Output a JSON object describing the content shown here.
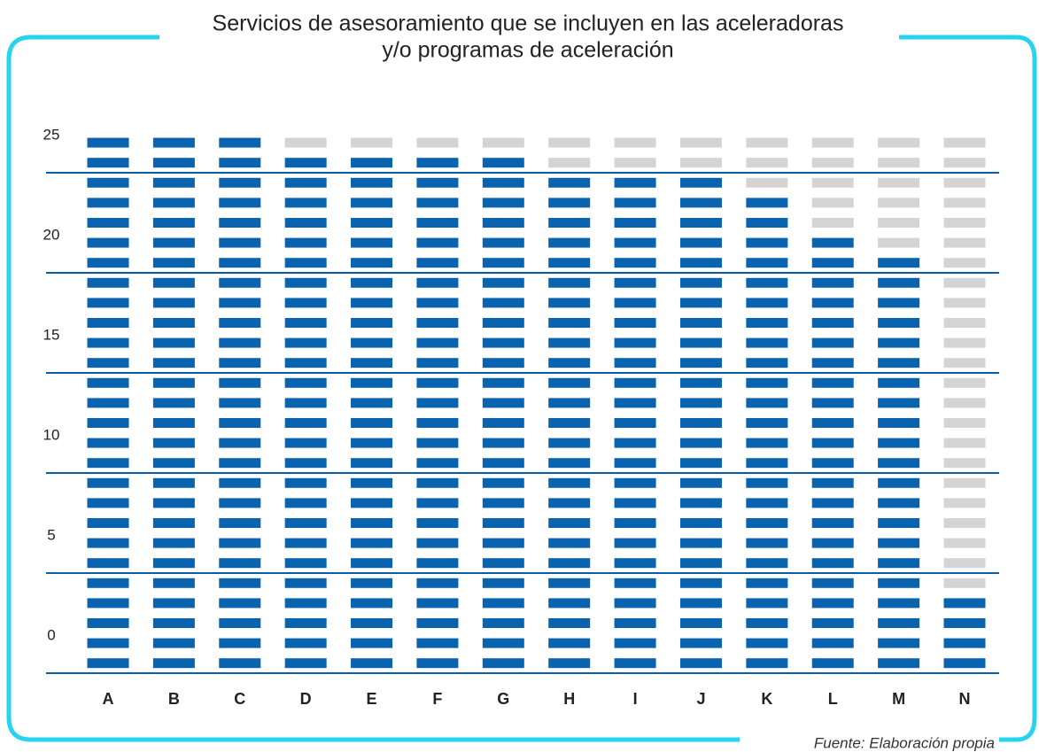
{
  "chart_data": {
    "type": "unit",
    "title": [
      "Servicios de asesoramiento que se incluyen en las aceleradoras",
      "y/o programas de aceleración"
    ],
    "categories": [
      "A",
      "B",
      "C",
      "D",
      "E",
      "F",
      "G",
      "H",
      "I",
      "J",
      "K",
      "L",
      "M",
      "N"
    ],
    "values": [
      27,
      27,
      27,
      26,
      26,
      26,
      26,
      25,
      25,
      25,
      24,
      22,
      21,
      4
    ],
    "color": "#0a63ae",
    "empty_color": "#d4d4d4",
    "ylim": [
      0,
      27
    ],
    "yticks": [
      0,
      5,
      10,
      15,
      20,
      25
    ],
    "grid": true,
    "source": "Fuente: Elaboración propia"
  }
}
